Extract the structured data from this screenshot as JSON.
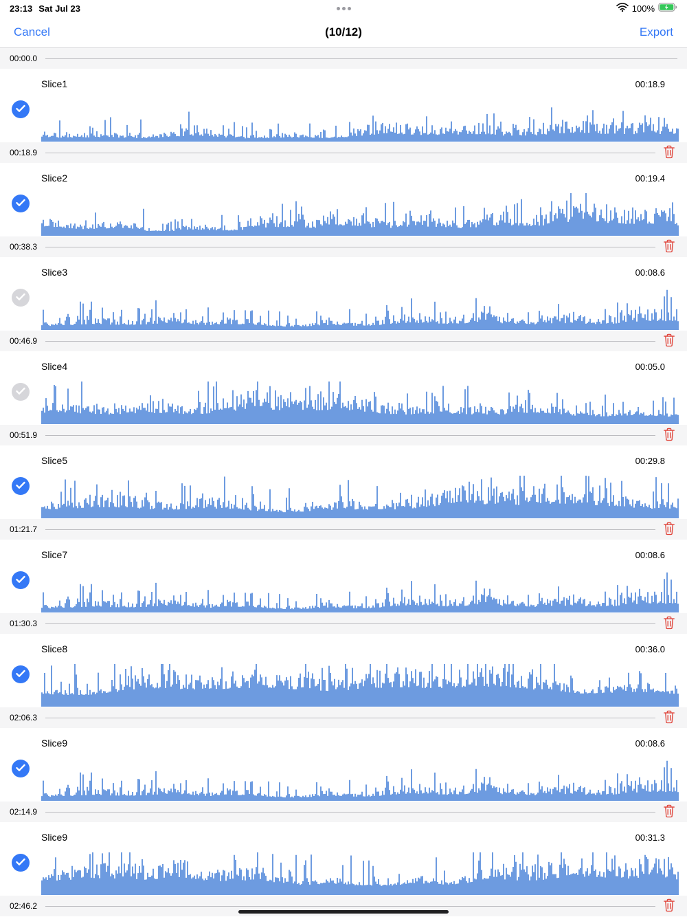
{
  "status_bar": {
    "time": "23:13",
    "date": "Sat Jul 23",
    "battery_percent": "100%"
  },
  "nav": {
    "cancel_label": "Cancel",
    "title": "(10/12)",
    "export_label": "Export"
  },
  "list": {
    "slices": [
      {
        "start_time": "00:00.0",
        "name": "Slice1",
        "duration": "00:18.9",
        "selected": true,
        "waveform": {
          "seed": 11,
          "low": 0.05,
          "high": 0.55
        }
      },
      {
        "start_time": "00:18.9",
        "name": "Slice2",
        "duration": "00:19.4",
        "selected": true,
        "waveform": {
          "seed": 22,
          "low": 0.1,
          "high": 0.72
        }
      },
      {
        "start_time": "00:38.3",
        "name": "Slice3",
        "duration": "00:08.6",
        "selected": false,
        "waveform": {
          "seed": 33,
          "low": 0.07,
          "high": 0.58
        }
      },
      {
        "start_time": "00:46.9",
        "name": "Slice4",
        "duration": "00:05.0",
        "selected": false,
        "waveform": {
          "seed": 44,
          "low": 0.15,
          "high": 0.78
        }
      },
      {
        "start_time": "00:51.9",
        "name": "Slice5",
        "duration": "00:29.8",
        "selected": true,
        "waveform": {
          "seed": 55,
          "low": 0.12,
          "high": 0.85
        }
      },
      {
        "start_time": "01:21.7",
        "name": "Slice7",
        "duration": "00:08.6",
        "selected": true,
        "waveform": {
          "seed": 33,
          "low": 0.07,
          "high": 0.58
        }
      },
      {
        "start_time": "01:30.3",
        "name": "Slice8",
        "duration": "00:36.0",
        "selected": true,
        "waveform": {
          "seed": 88,
          "low": 0.25,
          "high": 1.0
        }
      },
      {
        "start_time": "02:06.3",
        "name": "Slice9",
        "duration": "00:08.6",
        "selected": true,
        "waveform": {
          "seed": 33,
          "low": 0.07,
          "high": 0.58
        }
      },
      {
        "start_time": "02:14.9",
        "name": "Slice9",
        "duration": "00:31.3",
        "selected": true,
        "waveform": {
          "seed": 99,
          "low": 0.2,
          "high": 0.95
        }
      }
    ],
    "end_time": "02:46.2"
  },
  "colors": {
    "accent_blue": "#3478F6",
    "waveform_blue": "#6D9BE0",
    "trash_red": "#E0453B",
    "checkbox_gray": "#D6D6DA",
    "battery_green": "#35C759"
  },
  "icons": {
    "status_bar": [
      "wifi-icon",
      "battery-charging-icon",
      "ellipsis-icon"
    ],
    "rows": [
      "checkmark-icon",
      "trash-icon"
    ]
  }
}
